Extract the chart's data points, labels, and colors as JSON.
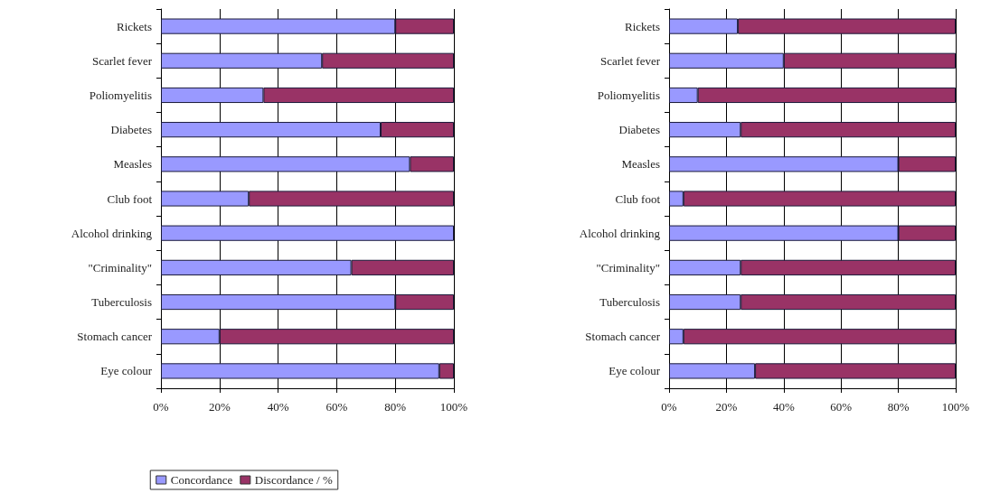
{
  "chart_data": [
    {
      "type": "bar",
      "orientation": "horizontal",
      "stacked": true,
      "categories": [
        "Rickets",
        "Scarlet fever",
        "Poliomyelitis",
        "Diabetes",
        "Measles",
        "Club foot",
        "Alcohol drinking",
        "\"Criminality\"",
        "Tuberculosis",
        "Stomach cancer",
        "Eye colour"
      ],
      "series": [
        {
          "name": "Concordance",
          "color": "#9999ff",
          "values": [
            80,
            55,
            35,
            75,
            85,
            30,
            100,
            65,
            80,
            20,
            95
          ]
        },
        {
          "name": "Discordance / %",
          "color": "#993366",
          "values": [
            20,
            45,
            65,
            25,
            15,
            70,
            0,
            35,
            20,
            80,
            5
          ]
        }
      ],
      "xlim": [
        0,
        100
      ],
      "xticks": [
        {
          "value": 0,
          "label": "0%"
        },
        {
          "value": 20,
          "label": "20%"
        },
        {
          "value": 40,
          "label": "40%"
        },
        {
          "value": 60,
          "label": "60%"
        },
        {
          "value": 80,
          "label": "80%"
        },
        {
          "value": 100,
          "label": "100%"
        }
      ],
      "grid": "x",
      "legend": "bottom"
    },
    {
      "type": "bar",
      "orientation": "horizontal",
      "stacked": true,
      "categories": [
        "Rickets",
        "Scarlet fever",
        "Poliomyelitis",
        "Diabetes",
        "Measles",
        "Club foot",
        "Alcohol drinking",
        "\"Criminality\"",
        "Tuberculosis",
        "Stomach cancer",
        "Eye colour"
      ],
      "series": [
        {
          "color": "#9999ff",
          "values": [
            24,
            40,
            10,
            25,
            80,
            5,
            80,
            25,
            25,
            5,
            30
          ]
        },
        {
          "color": "#993366",
          "values": [
            76,
            60,
            90,
            75,
            20,
            95,
            20,
            75,
            75,
            95,
            70
          ]
        }
      ],
      "xlim": [
        0,
        100
      ],
      "xticks": [
        {
          "value": 0,
          "label": "0%"
        },
        {
          "value": 20,
          "label": "20%"
        },
        {
          "value": 40,
          "label": "40%"
        },
        {
          "value": 60,
          "label": "60%"
        },
        {
          "value": 80,
          "label": "80%"
        },
        {
          "value": 100,
          "label": "100%"
        }
      ],
      "grid": "x"
    }
  ]
}
